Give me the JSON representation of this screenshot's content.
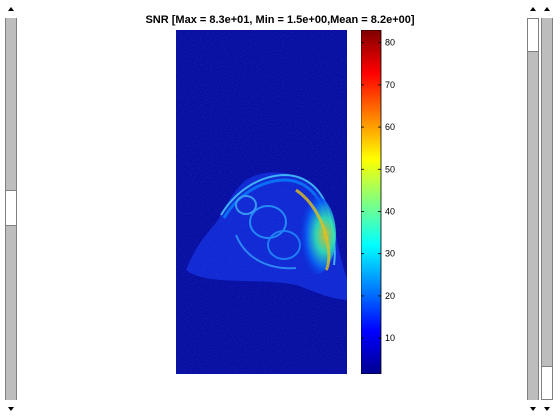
{
  "figure": {
    "title": "SNR [Max = 8.3e+01, Min = 1.5e+00,Mean = 8.2e+00]"
  },
  "colorbar": {
    "min": 1.5,
    "max": 83,
    "ticks": [
      {
        "value": 10,
        "label": "10"
      },
      {
        "value": 20,
        "label": "20"
      },
      {
        "value": 30,
        "label": "30"
      },
      {
        "value": 40,
        "label": "40"
      },
      {
        "value": 50,
        "label": "50"
      },
      {
        "value": 60,
        "label": "60"
      },
      {
        "value": 70,
        "label": "70"
      },
      {
        "value": 80,
        "label": "80"
      }
    ],
    "colormap": [
      "#00008f",
      "#0000ff",
      "#0080ff",
      "#00ffff",
      "#80ff80",
      "#ffff00",
      "#ff8000",
      "#ff0000",
      "#800000"
    ]
  },
  "colors": {
    "background": "#00009e",
    "scrollbar_track": "#bdbdbd"
  },
  "scrollbars": {
    "left": {
      "position": 0.48,
      "extent": 0.08
    },
    "right": {
      "position": 0.0,
      "extent": 0.12
    },
    "right2": {
      "position": 0.95,
      "extent": 0.05
    }
  }
}
